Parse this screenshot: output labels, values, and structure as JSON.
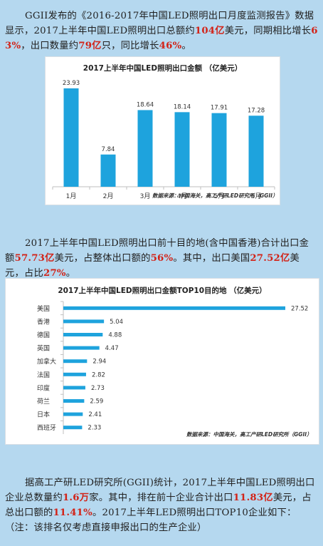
{
  "para1": {
    "segments": [
      {
        "text": "GGII发布的《2016-2017年中国LED照明出口月度监测报告》数据显示，2017上半年中国LED照明出口总额约",
        "hl": false
      },
      {
        "text": "104亿",
        "hl": true
      },
      {
        "text": "美元，同期相比增长",
        "hl": false
      },
      {
        "text": "63%",
        "hl": true
      },
      {
        "text": "，出口数量约",
        "hl": false
      },
      {
        "text": "79亿",
        "hl": true
      },
      {
        "text": "只，同比增长",
        "hl": false
      },
      {
        "text": "46%",
        "hl": true
      },
      {
        "text": "。",
        "hl": false
      }
    ]
  },
  "para2": {
    "segments": [
      {
        "text": "2017上半年中国LED照明出口前十目的地(含中国香港)合计出口金额",
        "hl": false
      },
      {
        "text": "57.73亿",
        "hl": true
      },
      {
        "text": "美元，占整体出口额的",
        "hl": false
      },
      {
        "text": "56%",
        "hl": true
      },
      {
        "text": "。其中，出口美国",
        "hl": false
      },
      {
        "text": "27.52亿",
        "hl": true
      },
      {
        "text": "美元，占比",
        "hl": false
      },
      {
        "text": "27%",
        "hl": true
      },
      {
        "text": "。",
        "hl": false
      }
    ]
  },
  "para3": {
    "segments": [
      {
        "text": "据高工产研LED研究所(GGII)统计，2017上半年中国LED照明出口企业总数量约",
        "hl": false
      },
      {
        "text": "1.6万",
        "hl": true
      },
      {
        "text": "家。其中，排在前十企业合计出口",
        "hl": false
      },
      {
        "text": "11.83亿",
        "hl": true
      },
      {
        "text": "美元，占总出口额的",
        "hl": false
      },
      {
        "text": "11.41%",
        "hl": true
      },
      {
        "text": "。2017上半年LED照明出口TOP10企业如下：（注：该排名仅考虑直接申报出口的生产企业）",
        "hl": false
      }
    ]
  },
  "colors": {
    "bar": "#1ea3dd",
    "highlight": "#d22318"
  },
  "chart_data": [
    {
      "type": "bar",
      "title": "2017上半年中国LED照明出口金额 （亿美元）",
      "categories": [
        "1月",
        "2月",
        "3月",
        "4月",
        "5月",
        "6月"
      ],
      "values": [
        23.93,
        7.84,
        18.64,
        18.14,
        17.91,
        17.28
      ],
      "value_labels": [
        "23.93",
        "7.84",
        "18.64",
        "18.14",
        "17.91",
        "17.28"
      ],
      "ylim": [
        0,
        26
      ],
      "grid": false,
      "source": "数据来源：中国海关，高工产研LED研究所（GGII）"
    },
    {
      "type": "bar",
      "orientation": "horizontal",
      "title": "2017上半年中国LED照明出口金额TOP10目的地 （亿美元）",
      "categories": [
        "美国",
        "香港",
        "德国",
        "英国",
        "加拿大",
        "法国",
        "印度",
        "荷兰",
        "日本",
        "西班牙"
      ],
      "values": [
        27.52,
        5.04,
        4.88,
        4.47,
        2.94,
        2.82,
        2.73,
        2.59,
        2.41,
        2.33
      ],
      "value_labels": [
        "27.52",
        "5.04",
        "4.88",
        "4.47",
        "2.94",
        "2.82",
        "2.73",
        "2.59",
        "2.41",
        "2.33"
      ],
      "xlim": [
        0,
        30
      ],
      "grid": false,
      "source": "数据来源：中国海关，高工产研LED研究所（GGII）"
    }
  ]
}
